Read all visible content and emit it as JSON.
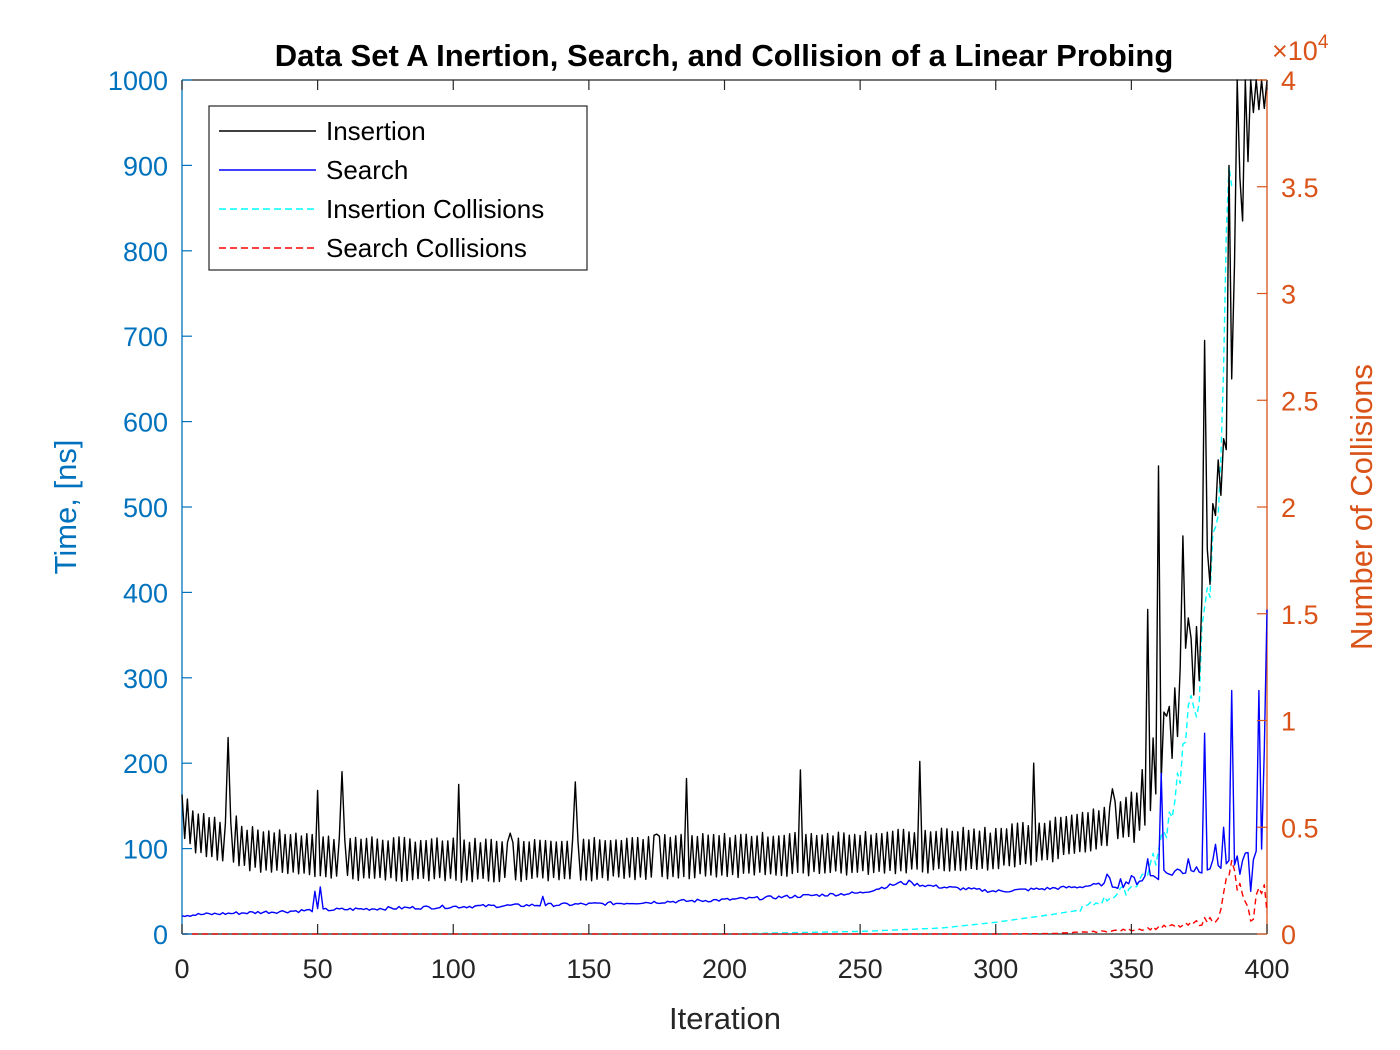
{
  "chart_data": {
    "type": "line",
    "title": "Data Set A Inertion, Search, and Collision of a Linear Probing",
    "xlabel": "Iteration",
    "ylabel_left": "Time, [ns]",
    "ylabel_right": "Number of Collisions",
    "right_exponent_base": "×10",
    "right_exponent_power": "4",
    "xlim": [
      0,
      400
    ],
    "ylim_left": [
      0,
      1000
    ],
    "ylim_right": [
      0,
      40000
    ],
    "x_ticks": [
      "0",
      "50",
      "100",
      "150",
      "200",
      "250",
      "300",
      "350",
      "400"
    ],
    "left_ticks": [
      "0",
      "100",
      "200",
      "300",
      "400",
      "500",
      "600",
      "700",
      "800",
      "900",
      "1000"
    ],
    "right_ticks": [
      "0",
      "0.5",
      "1",
      "1.5",
      "2",
      "2.5",
      "3",
      "3.5",
      "4"
    ],
    "legend_position": "top-left",
    "grid": false,
    "colors": {
      "left_axis": "#0072BD",
      "right_axis": "#D95319",
      "insertion": "#000000",
      "search": "#0000FF",
      "insertion_collisions": "#00FFFF",
      "search_collisions": "#FF0000"
    },
    "series": [
      {
        "name": "Insertion",
        "axis": "left",
        "style": "solid",
        "color": "#000000",
        "baseline_points": [
          [
            0,
            140
          ],
          [
            5,
            118
          ],
          [
            25,
            100
          ],
          [
            50,
            90
          ],
          [
            100,
            86
          ],
          [
            150,
            88
          ],
          [
            200,
            92
          ],
          [
            250,
            95
          ],
          [
            300,
            100
          ],
          [
            320,
            110
          ],
          [
            340,
            125
          ],
          [
            350,
            140
          ],
          [
            355,
            165
          ],
          [
            360,
            210
          ],
          [
            365,
            240
          ],
          [
            370,
            300
          ],
          [
            375,
            330
          ],
          [
            380,
            470
          ],
          [
            385,
            600
          ],
          [
            390,
            850
          ],
          [
            395,
            1000
          ],
          [
            400,
            1000
          ]
        ],
        "sawtooth_amplitude": 45,
        "spikes": [
          [
            2,
            158
          ],
          [
            17,
            230
          ],
          [
            20,
            138
          ],
          [
            50,
            168
          ],
          [
            59,
            190
          ],
          [
            102,
            175
          ],
          [
            121,
            118
          ],
          [
            145,
            178
          ],
          [
            175,
            117
          ],
          [
            186,
            182
          ],
          [
            228,
            192
          ],
          [
            272,
            202
          ],
          [
            298,
            118
          ],
          [
            314,
            200
          ],
          [
            330,
            140
          ],
          [
            343,
            170
          ],
          [
            352,
            165
          ],
          [
            356,
            380
          ],
          [
            360,
            548
          ],
          [
            363,
            255
          ],
          [
            369,
            466
          ],
          [
            371,
            370
          ],
          [
            377,
            695
          ],
          [
            381,
            490
          ],
          [
            384,
            580
          ],
          [
            386,
            900
          ],
          [
            387,
            650
          ],
          [
            389,
            1000
          ],
          [
            391,
            835
          ],
          [
            392,
            1000
          ]
        ]
      },
      {
        "name": "Search",
        "axis": "left",
        "style": "solid",
        "color": "#0000FF",
        "baseline_points": [
          [
            0,
            22
          ],
          [
            50,
            28
          ],
          [
            100,
            32
          ],
          [
            150,
            35
          ],
          [
            200,
            40
          ],
          [
            250,
            48
          ],
          [
            265,
            60
          ],
          [
            280,
            55
          ],
          [
            300,
            50
          ],
          [
            330,
            55
          ],
          [
            350,
            62
          ],
          [
            360,
            70
          ],
          [
            380,
            80
          ],
          [
            390,
            85
          ],
          [
            400,
            100
          ]
        ],
        "spikes": [
          [
            49,
            50
          ],
          [
            51,
            55
          ],
          [
            133,
            44
          ],
          [
            268,
            63
          ],
          [
            341,
            70
          ],
          [
            356,
            88
          ],
          [
            361,
            188
          ],
          [
            364,
            70
          ],
          [
            371,
            88
          ],
          [
            377,
            235
          ],
          [
            381,
            105
          ],
          [
            384,
            125
          ],
          [
            387,
            285
          ],
          [
            390,
            70
          ],
          [
            394,
            50
          ],
          [
            397,
            285
          ],
          [
            399,
            215
          ],
          [
            400,
            380
          ]
        ]
      },
      {
        "name": "Insertion Collisions",
        "axis": "right",
        "style": "dashed",
        "color": "#00FFFF",
        "points": [
          [
            0,
            0
          ],
          [
            200,
            0
          ],
          [
            220,
            50
          ],
          [
            250,
            120
          ],
          [
            280,
            280
          ],
          [
            300,
            550
          ],
          [
            320,
            900
          ],
          [
            330,
            1100
          ],
          [
            340,
            1600
          ],
          [
            350,
            2200
          ],
          [
            355,
            2800
          ],
          [
            360,
            3800
          ],
          [
            365,
            6000
          ],
          [
            370,
            9000
          ],
          [
            375,
            12000
          ],
          [
            378,
            15000
          ],
          [
            380,
            17500
          ],
          [
            382,
            21000
          ],
          [
            385,
            30000
          ],
          [
            386,
            35000
          ],
          [
            387,
            38500
          ]
        ]
      },
      {
        "name": "Search Collisions",
        "axis": "right",
        "style": "dashed",
        "color": "#FF0000",
        "points": [
          [
            0,
            0
          ],
          [
            300,
            0
          ],
          [
            320,
            20
          ],
          [
            340,
            120
          ],
          [
            350,
            200
          ],
          [
            360,
            300
          ],
          [
            370,
            400
          ],
          [
            375,
            550
          ],
          [
            380,
            700
          ],
          [
            383,
            1000
          ],
          [
            386,
            3000
          ],
          [
            389,
            2400
          ],
          [
            392,
            1200
          ],
          [
            395,
            600
          ],
          [
            397,
            2600
          ],
          [
            399,
            2200
          ],
          [
            400,
            1000
          ]
        ]
      }
    ]
  }
}
